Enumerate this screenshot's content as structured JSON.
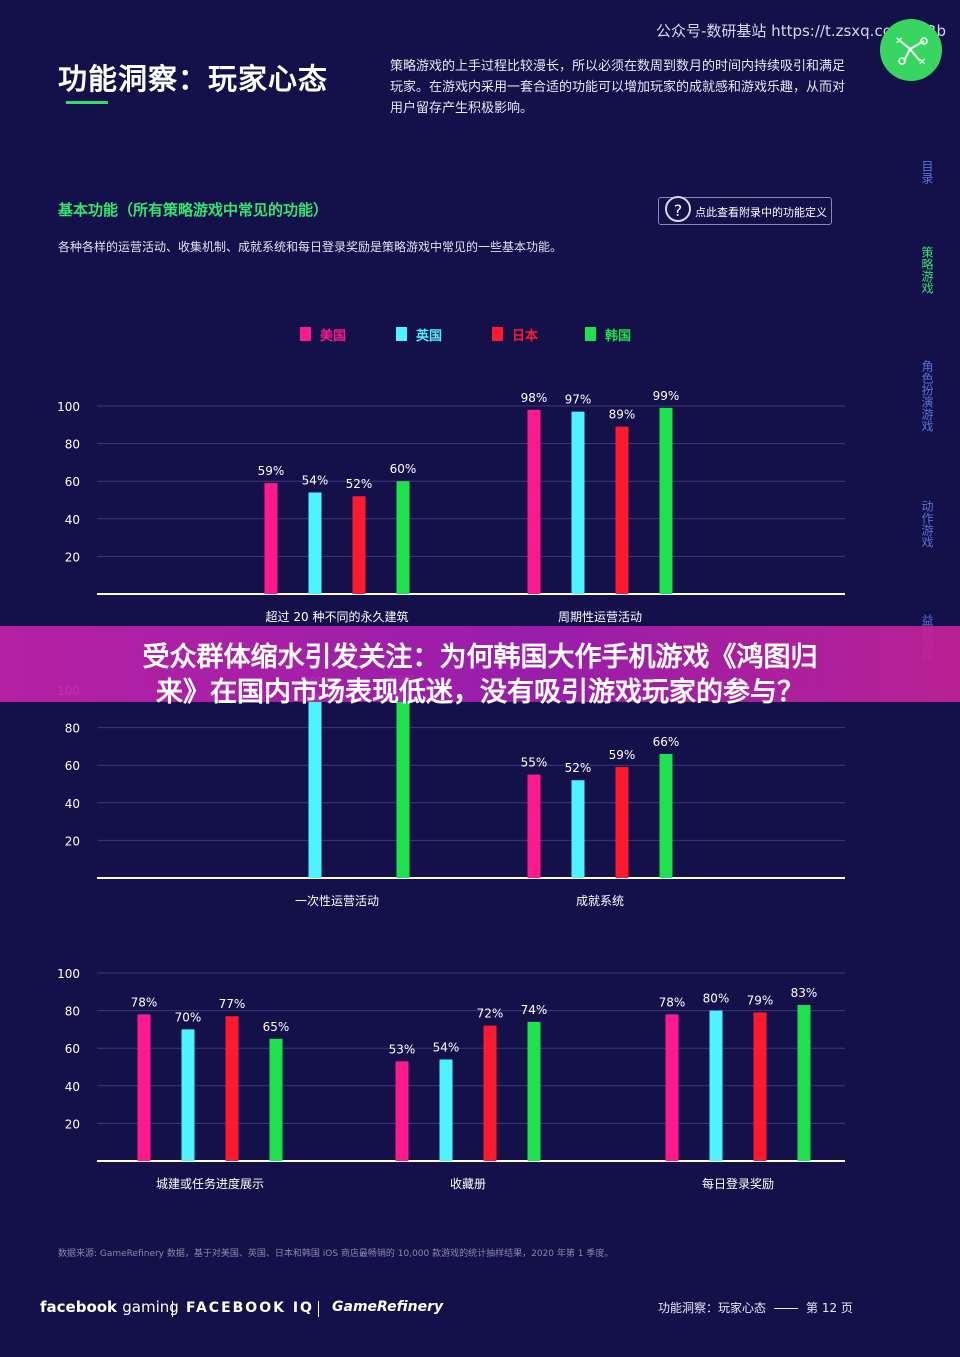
{
  "header": {
    "title": "功能洞察：玩家心态",
    "intro": "策略游戏的上手过程比较漫长，所以必须在数周到数月的时间内持续吸引和满足玩家。在游戏内采用一套合适的功能可以增加玩家的成就感和游戏乐趣，从而对用户留存产生积极影响。",
    "source_watermark": "公众号-数研基站 https://t.zsxq.com/ⵓ/Rb"
  },
  "section": {
    "title": "基本功能（所有策略游戏中常见的功能）",
    "description": "各种各样的运营活动、收集机制、成就系统和每日登录奖励是策略游戏中常见的一些基本功能。",
    "appendix_button": "点此查看附录中的功能定义",
    "appendix_icon": "question-icon"
  },
  "side_nav": {
    "items": [
      {
        "label": "目录",
        "active": false
      },
      {
        "label": "策略游戏",
        "active": true
      },
      {
        "label": "角色扮演游戏",
        "active": false
      },
      {
        "label": "动作游戏",
        "active": false
      },
      {
        "label": "益智游戏",
        "active": false
      }
    ]
  },
  "colors": {
    "background": "#14104a",
    "accent_green": "#35e46c",
    "美国": "#ff1a8c",
    "英国": "#4ff3ff",
    "日本": "#ff1a2e",
    "韩国": "#1de24c",
    "banner": "#b020a8"
  },
  "legend": [
    "美国",
    "英国",
    "日本",
    "韩国"
  ],
  "chart_data": [
    {
      "type": "bar",
      "categories": [
        "超过 20 种不同的永久建筑",
        "周期性运营活动"
      ],
      "series": [
        {
          "name": "美国",
          "values": [
            59,
            98
          ]
        },
        {
          "name": "英国",
          "values": [
            54,
            97
          ]
        },
        {
          "name": "日本",
          "values": [
            52,
            89
          ]
        },
        {
          "name": "韩国",
          "values": [
            60,
            99
          ]
        }
      ],
      "ylim": [
        0,
        100
      ],
      "yticks": [
        20,
        40,
        60,
        80,
        100
      ],
      "grid": true
    },
    {
      "type": "bar",
      "categories": [
        "一次性运营活动",
        "成就系统"
      ],
      "series": [
        {
          "name": "美国",
          "values": [
            null,
            55
          ]
        },
        {
          "name": "英国",
          "values": [
            98,
            52
          ]
        },
        {
          "name": "日本",
          "values": [
            null,
            59
          ]
        },
        {
          "name": "韩国",
          "values": [
            99,
            66
          ]
        }
      ],
      "ylim": [
        0,
        100
      ],
      "yticks": [
        20,
        40,
        60,
        80,
        100
      ],
      "grid": true
    },
    {
      "type": "bar",
      "categories": [
        "城建或任务进度展示",
        "收藏册",
        "每日登录奖励"
      ],
      "series": [
        {
          "name": "美国",
          "values": [
            78,
            53,
            78
          ]
        },
        {
          "name": "英国",
          "values": [
            70,
            54,
            80
          ]
        },
        {
          "name": "日本",
          "values": [
            77,
            72,
            79
          ]
        },
        {
          "name": "韩国",
          "values": [
            65,
            74,
            83
          ]
        }
      ],
      "ylim": [
        0,
        100
      ],
      "yticks": [
        20,
        40,
        60,
        80,
        100
      ],
      "grid": true
    }
  ],
  "banner": {
    "line1": "受众群体缩水引发关注：为何韩国大作手机游戏《鸿图归",
    "line2": "来》在国内市场表现低迷，没有吸引游戏玩家的参与？"
  },
  "footer": {
    "footnote": "数据来源: GameRefinery 数据，基于对美国、英国、日本和韩国 iOS 商店最畅销的 10,000 款游戏的统计抽样结果，2020 年第 1 季度。",
    "brand_fb": "facebook",
    "brand_gaming": "gaming",
    "brand_iq": "FACEBOOK IQ",
    "brand_gr": "GameRefinery",
    "page_section": "功能洞察：玩家心态",
    "page_number": "第 12 页"
  }
}
